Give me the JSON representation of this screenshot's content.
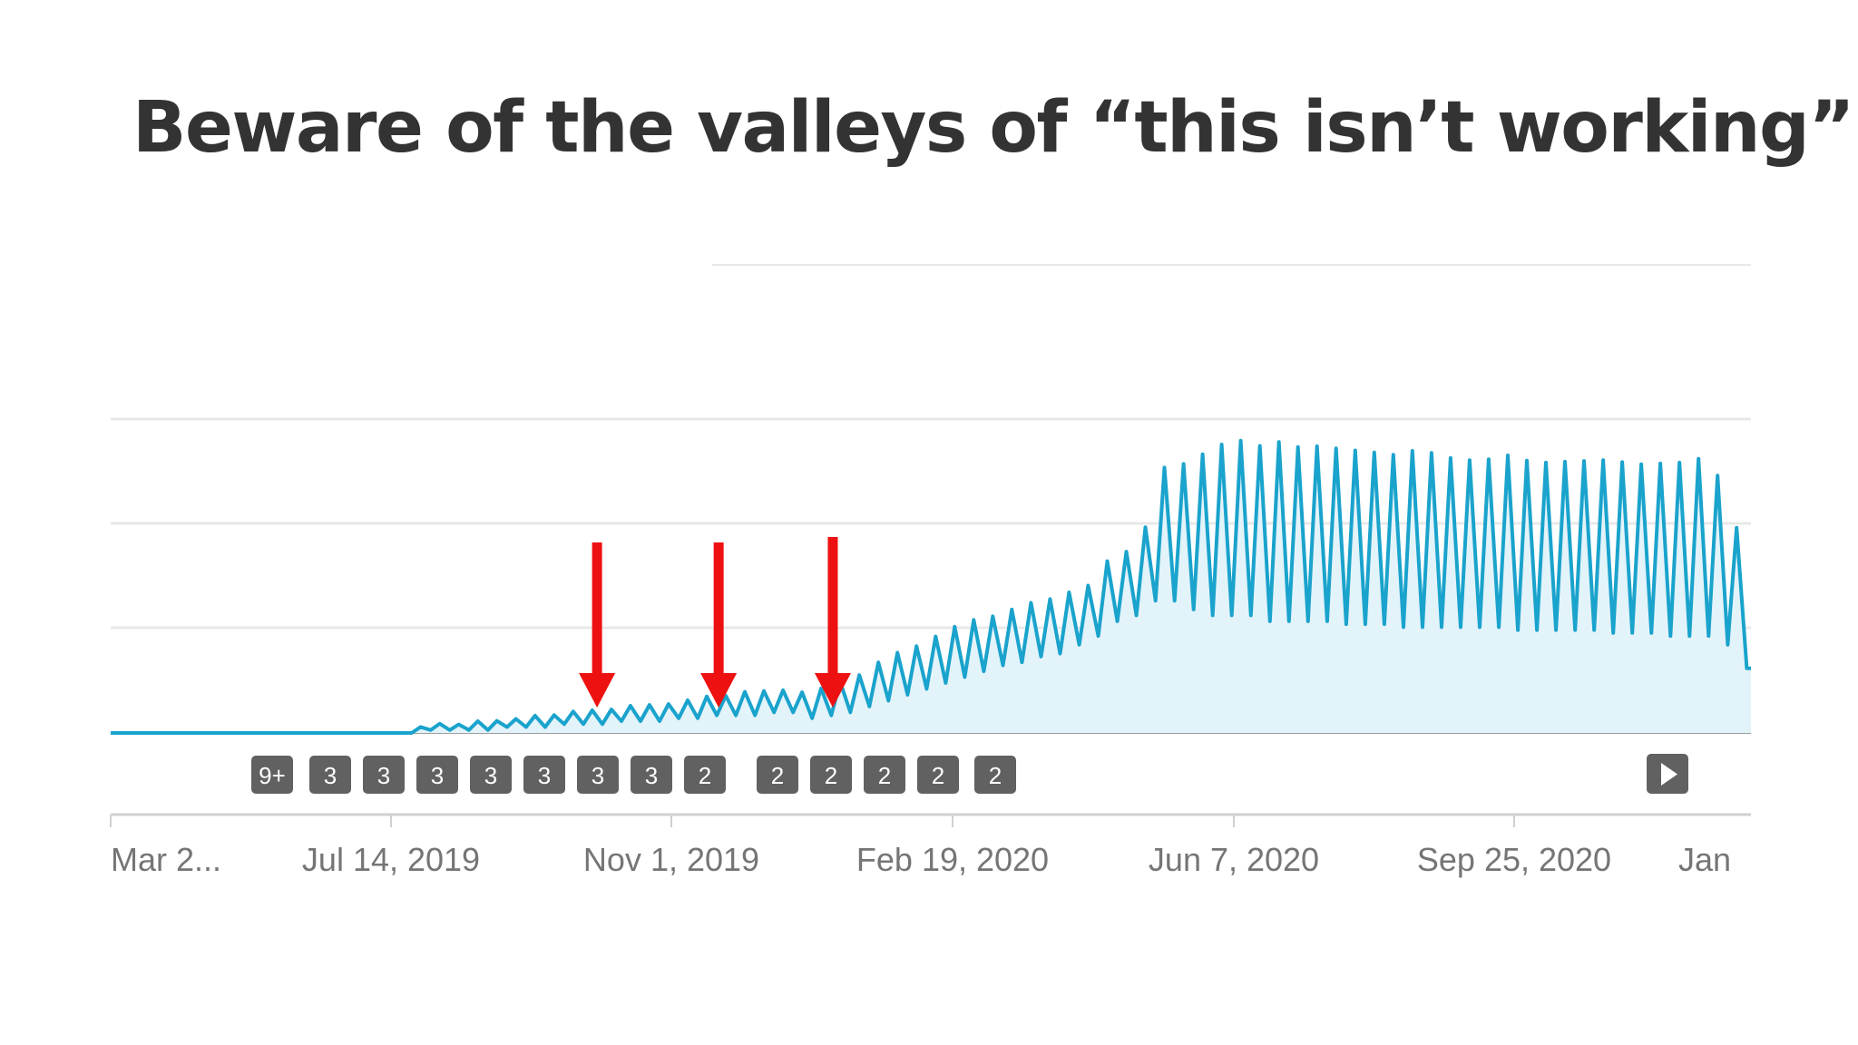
{
  "slide": {
    "title": "Beware of the valleys of “this isn’t working”"
  },
  "colors": {
    "line": "#1aa3cc",
    "area": "#e3f3fa",
    "gridline": "#e8e8e8",
    "arrow": "#ee1111",
    "badge": "#616161",
    "axis": "#9e9e9e"
  },
  "chart_data": {
    "type": "area",
    "title": "Beware of the valleys of “this isn’t working”",
    "x_ticks": [
      "Mar 2...",
      "Jul 14, 2019",
      "Nov 1, 2019",
      "Feb 19, 2020",
      "Jun 7, 2020",
      "Sep 25, 2020",
      "Jan "
    ],
    "x_range": [
      "2019-03-26",
      "2021-01-15"
    ],
    "y_ticks": [],
    "y_range": [
      0,
      100
    ],
    "grid": true,
    "legend": "none",
    "series": [
      {
        "values": [
          0,
          0,
          0,
          0,
          0,
          0,
          0,
          0,
          0,
          0,
          0,
          0,
          0,
          0,
          0,
          0,
          2,
          3,
          3,
          4,
          4,
          5,
          6,
          6,
          7,
          8,
          8,
          9,
          10,
          10,
          11,
          12,
          13,
          14,
          14,
          15,
          14,
          15,
          17,
          20,
          24,
          27,
          30,
          33,
          36,
          38,
          40,
          42,
          44,
          46,
          48,
          50,
          58,
          62,
          70,
          90,
          92,
          95,
          98,
          99,
          98,
          99,
          97,
          98,
          97,
          96,
          95,
          95,
          96,
          95,
          94,
          93,
          93,
          94,
          93,
          92,
          92,
          93,
          93,
          92,
          91,
          92,
          92,
          93,
          88,
          70
        ],
        "weekly_min": [
          0,
          0,
          0,
          0,
          0,
          0,
          0,
          0,
          0,
          0,
          0,
          0,
          0,
          0,
          0,
          0,
          1,
          1,
          1,
          1,
          2,
          2,
          2,
          3,
          3,
          3,
          4,
          4,
          4,
          5,
          5,
          6,
          6,
          6,
          7,
          7,
          5,
          6,
          7,
          9,
          11,
          13,
          15,
          17,
          19,
          21,
          23,
          24,
          26,
          27,
          30,
          33,
          38,
          40,
          45,
          45,
          42,
          40,
          40,
          40,
          38,
          38,
          38,
          38,
          37,
          37,
          37,
          36,
          36,
          36,
          36,
          36,
          36,
          35,
          35,
          35,
          35,
          35,
          34,
          34,
          34,
          33,
          33,
          33,
          30,
          22
        ]
      }
    ],
    "annotations": {
      "arrows": [
        "2019-10-08",
        "2019-11-26",
        "2020-01-11"
      ],
      "event_badges": [
        "9+",
        "3",
        "3",
        "3",
        "3",
        "3",
        "3",
        "3",
        "2",
        "2",
        "2",
        "2",
        "2",
        "2"
      ],
      "play_control": "play-icon"
    }
  }
}
